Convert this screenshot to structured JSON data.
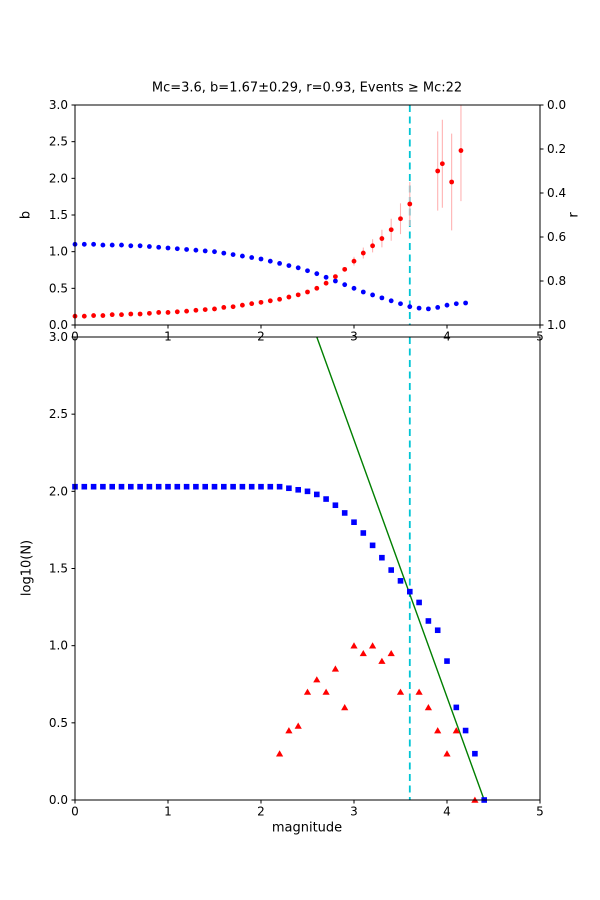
{
  "figure": {
    "background": "#ffffff",
    "axis_color": "#000000"
  },
  "chart_data": [
    {
      "id": "top-panel-b-r-vs-magnitude",
      "type": "scatter",
      "title": "Mc=3.6, b=1.67±0.29, r=0.93, Events ≥ Mc:22",
      "xlim": [
        0,
        5
      ],
      "xticks": [
        "0",
        "1",
        "2",
        "3",
        "4",
        "5"
      ],
      "ylabel_left": "b",
      "ylim_left": [
        0.0,
        3.0
      ],
      "yticks_left": [
        "0.0",
        "0.5",
        "1.0",
        "1.5",
        "2.0",
        "2.5",
        "3.0"
      ],
      "ylabel_right": "r",
      "ylim_right": [
        0.0,
        1.0
      ],
      "right_axis_inverted": true,
      "yticks_right": [
        "0.0",
        "0.2",
        "0.4",
        "0.6",
        "0.8",
        "1.0"
      ],
      "vline": {
        "x": 3.6,
        "style": "dashed",
        "color": "#00c5d4"
      },
      "series": [
        {
          "name": "b-value",
          "axis": "left",
          "marker": "circle",
          "color": "#0000ff",
          "x": [
            0,
            0.1,
            0.2,
            0.3,
            0.4,
            0.5,
            0.6,
            0.7,
            0.8,
            0.9,
            1.0,
            1.1,
            1.2,
            1.3,
            1.4,
            1.5,
            1.6,
            1.7,
            1.8,
            1.9,
            2.0,
            2.1,
            2.2,
            2.3,
            2.4,
            2.5,
            2.6,
            2.7,
            2.8,
            2.9,
            3.0,
            3.1,
            3.2,
            3.3,
            3.4,
            3.5,
            3.6,
            3.7,
            3.8,
            3.9,
            4.0,
            4.1,
            4.2
          ],
          "y": [
            1.1,
            1.1,
            1.1,
            1.09,
            1.09,
            1.09,
            1.08,
            1.08,
            1.07,
            1.06,
            1.05,
            1.04,
            1.03,
            1.02,
            1.01,
            1.0,
            0.98,
            0.96,
            0.94,
            0.92,
            0.9,
            0.87,
            0.84,
            0.81,
            0.78,
            0.74,
            0.7,
            0.65,
            0.6,
            0.55,
            0.5,
            0.45,
            0.41,
            0.37,
            0.33,
            0.29,
            0.25,
            0.23,
            0.22,
            0.24,
            0.27,
            0.29,
            0.3
          ]
        },
        {
          "name": "r-value",
          "axis": "right",
          "marker": "circle",
          "color": "#ff0000",
          "err_color": "#ffb3b3",
          "x": [
            0,
            0.1,
            0.2,
            0.3,
            0.4,
            0.5,
            0.6,
            0.7,
            0.8,
            0.9,
            1.0,
            1.1,
            1.2,
            1.3,
            1.4,
            1.5,
            1.6,
            1.7,
            1.8,
            1.9,
            2.0,
            2.1,
            2.2,
            2.3,
            2.4,
            2.5,
            2.6,
            2.7,
            2.8,
            2.9,
            3.0,
            3.1,
            3.2,
            3.3,
            3.4,
            3.5,
            3.6,
            3.9,
            3.95,
            4.05,
            4.15
          ],
          "y": [
            0.96,
            0.96,
            0.957,
            0.957,
            0.953,
            0.953,
            0.95,
            0.95,
            0.947,
            0.943,
            0.943,
            0.94,
            0.937,
            0.933,
            0.93,
            0.927,
            0.92,
            0.917,
            0.91,
            0.903,
            0.897,
            0.89,
            0.883,
            0.873,
            0.863,
            0.85,
            0.833,
            0.81,
            0.78,
            0.747,
            0.71,
            0.673,
            0.64,
            0.607,
            0.567,
            0.517,
            0.45,
            0.3,
            0.267,
            0.35,
            0.207
          ],
          "yerr": [
            0,
            0,
            0,
            0,
            0,
            0,
            0,
            0,
            0,
            0,
            0,
            0,
            0,
            0,
            0,
            0,
            0,
            0,
            0,
            0,
            0,
            0,
            0,
            0,
            0,
            0,
            0,
            0,
            0,
            0,
            0.02,
            0.025,
            0.03,
            0.04,
            0.05,
            0.07,
            0.1,
            0.18,
            0.2,
            0.22,
            0.23
          ]
        }
      ]
    },
    {
      "id": "bottom-panel-fmd",
      "type": "scatter",
      "xlabel": "magnitude",
      "ylabel": "log10(N)",
      "xlim": [
        0,
        5
      ],
      "xticks": [
        "0",
        "1",
        "2",
        "3",
        "4",
        "5"
      ],
      "ylim": [
        0.0,
        3.0
      ],
      "yticks": [
        "0.0",
        "0.5",
        "1.0",
        "1.5",
        "2.0",
        "2.5",
        "3.0"
      ],
      "vline": {
        "x": 3.6,
        "style": "dashed",
        "color": "#00c5d4"
      },
      "fit_line": {
        "color": "#007f00",
        "slope_b": 1.67,
        "x": [
          2.6,
          4.4
        ],
        "y": [
          3.0,
          0.0
        ]
      },
      "series": [
        {
          "name": "cumulative-count",
          "axis": "left",
          "marker": "square",
          "color": "#0000ff",
          "x": [
            0,
            0.1,
            0.2,
            0.3,
            0.4,
            0.5,
            0.6,
            0.7,
            0.8,
            0.9,
            1.0,
            1.1,
            1.2,
            1.3,
            1.4,
            1.5,
            1.6,
            1.7,
            1.8,
            1.9,
            2.0,
            2.1,
            2.2,
            2.3,
            2.4,
            2.5,
            2.6,
            2.7,
            2.8,
            2.9,
            3.0,
            3.1,
            3.2,
            3.3,
            3.4,
            3.5,
            3.6,
            3.7,
            3.8,
            3.9,
            4.0,
            4.1,
            4.2,
            4.3,
            4.4
          ],
          "y": [
            2.03,
            2.03,
            2.03,
            2.03,
            2.03,
            2.03,
            2.03,
            2.03,
            2.03,
            2.03,
            2.03,
            2.03,
            2.03,
            2.03,
            2.03,
            2.03,
            2.03,
            2.03,
            2.03,
            2.03,
            2.03,
            2.03,
            2.03,
            2.02,
            2.01,
            2.0,
            1.98,
            1.95,
            1.91,
            1.86,
            1.8,
            1.73,
            1.65,
            1.57,
            1.49,
            1.42,
            1.35,
            1.28,
            1.16,
            1.1,
            0.9,
            0.6,
            0.45,
            0.3,
            0.0
          ]
        },
        {
          "name": "binned-count",
          "axis": "left",
          "marker": "triangle",
          "color": "#ff0000",
          "x": [
            2.2,
            2.3,
            2.4,
            2.5,
            2.6,
            2.7,
            2.8,
            2.9,
            3.0,
            3.1,
            3.2,
            3.3,
            3.4,
            3.5,
            3.7,
            3.8,
            3.9,
            4.0,
            4.1,
            4.3
          ],
          "y": [
            0.3,
            0.45,
            0.48,
            0.7,
            0.78,
            0.7,
            0.85,
            0.6,
            1.0,
            0.95,
            1.0,
            0.9,
            0.95,
            0.7,
            0.7,
            0.6,
            0.45,
            0.3,
            0.45,
            0.0
          ]
        }
      ]
    }
  ]
}
